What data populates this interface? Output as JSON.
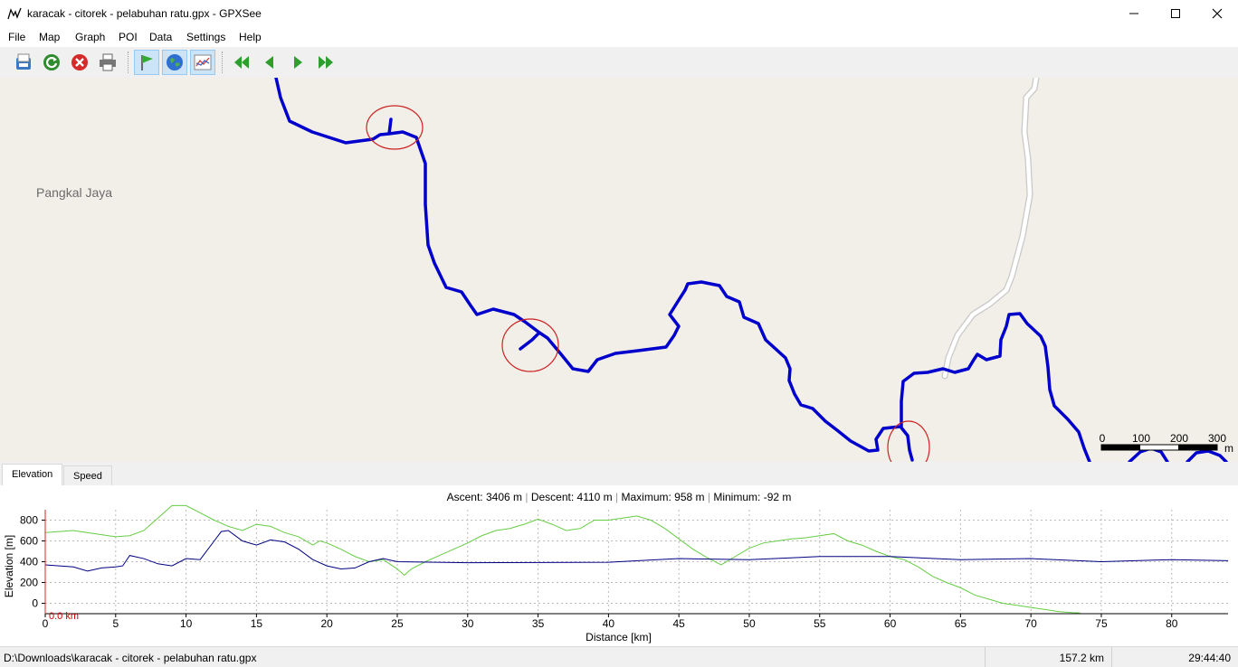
{
  "window": {
    "title": "karacak - citorek - pelabuhan ratu.gpx - GPXSee",
    "controls": {
      "minimize_icon": "minimize-icon",
      "maximize_icon": "maximize-icon",
      "close_icon": "close-icon"
    }
  },
  "menu": {
    "items": [
      {
        "label": "File"
      },
      {
        "label": "Map"
      },
      {
        "label": "Graph"
      },
      {
        "label": "POI"
      },
      {
        "label": "Data"
      },
      {
        "label": "Settings"
      },
      {
        "label": "Help"
      }
    ]
  },
  "toolbar": {
    "buttons": [
      {
        "icon": "open-file-icon"
      },
      {
        "icon": "reload-icon"
      },
      {
        "icon": "close-file-icon"
      },
      {
        "icon": "print-icon"
      },
      {
        "icon": "show-poi-icon",
        "active": true
      },
      {
        "icon": "show-map-icon",
        "active": true
      },
      {
        "icon": "show-graphs-icon",
        "active": true
      },
      {
        "icon": "first-file-icon"
      },
      {
        "icon": "previous-file-icon"
      },
      {
        "icon": "next-file-icon"
      },
      {
        "icon": "last-file-icon"
      }
    ]
  },
  "map": {
    "place_label": "Pangkal Jaya",
    "track_color": "#0000cc",
    "road_color": "#ffffff",
    "marker_color": "#cc2222",
    "scale": {
      "ticks": [
        "0",
        "100",
        "200",
        "300"
      ],
      "unit": "m"
    }
  },
  "graph_tabs": [
    {
      "label": "Elevation",
      "selected": true
    },
    {
      "label": "Speed",
      "selected": false
    }
  ],
  "elevation_info": {
    "ascent_label": "Ascent:",
    "ascent": "3406 m",
    "descent_label": "Descent:",
    "descent": "4110 m",
    "max_label": "Maximum:",
    "max": "958 m",
    "min_label": "Minimum:",
    "min": "-92 m",
    "separator": "|"
  },
  "chart_data": {
    "type": "line",
    "xlabel": "Distance [km]",
    "ylabel": "Elevation [m]",
    "xlim": [
      0,
      84
    ],
    "ylim": [
      -100,
      900
    ],
    "x_ticks": [
      0,
      5,
      10,
      15,
      20,
      25,
      30,
      35,
      40,
      45,
      50,
      55,
      60,
      65,
      70,
      75,
      80
    ],
    "y_ticks": [
      0,
      200,
      400,
      600,
      800
    ],
    "grid": true,
    "cursor_label": "0.0 km",
    "series": [
      {
        "color": "#66cc44",
        "x": [
          0,
          2,
          4,
          5,
          6,
          7,
          8,
          9,
          10,
          11,
          12,
          13,
          14,
          15,
          16,
          17,
          18,
          19,
          19.5,
          20,
          21,
          22,
          23,
          24,
          25,
          25.5,
          26,
          27,
          28,
          29,
          30,
          31,
          32,
          33,
          34,
          35,
          36,
          37,
          38,
          39,
          40,
          41,
          42,
          43,
          44,
          45,
          46,
          47,
          48,
          49,
          50,
          51,
          52,
          53,
          54,
          55,
          56,
          57,
          58,
          59,
          60,
          61,
          62,
          63,
          64,
          65,
          66,
          67,
          68,
          69,
          70,
          71,
          72,
          73,
          73.5
        ],
        "values": [
          680,
          700,
          660,
          640,
          650,
          700,
          820,
          940,
          940,
          870,
          800,
          740,
          700,
          760,
          740,
          680,
          640,
          560,
          600,
          580,
          520,
          450,
          400,
          420,
          330,
          270,
          330,
          400,
          460,
          520,
          580,
          650,
          700,
          720,
          760,
          810,
          760,
          700,
          720,
          800,
          800,
          820,
          840,
          800,
          720,
          620,
          520,
          440,
          370,
          450,
          530,
          580,
          600,
          620,
          630,
          650,
          670,
          600,
          560,
          500,
          450,
          420,
          350,
          260,
          200,
          150,
          80,
          40,
          0,
          -20,
          -40,
          -60,
          -80,
          -90,
          -92
        ]
      },
      {
        "color": "#000080",
        "x": [
          0,
          2,
          3,
          4,
          5,
          5.5,
          6,
          7,
          8,
          9,
          10,
          11,
          12,
          12.5,
          13,
          14,
          15,
          16,
          17,
          18,
          19,
          20,
          21,
          22,
          23,
          24,
          25,
          30,
          40,
          45,
          50,
          55,
          60,
          65,
          70,
          75,
          80,
          84
        ],
        "values": [
          370,
          350,
          310,
          340,
          350,
          360,
          460,
          430,
          380,
          360,
          430,
          420,
          600,
          690,
          700,
          600,
          560,
          610,
          590,
          520,
          420,
          360,
          330,
          340,
          400,
          430,
          400,
          390,
          395,
          430,
          420,
          450,
          450,
          420,
          430,
          400,
          420,
          410
        ]
      }
    ]
  },
  "status": {
    "file_path": "D:\\Downloads\\karacak - citorek - pelabuhan ratu.gpx",
    "distance": "157.2 km",
    "time": "29:44:40"
  }
}
